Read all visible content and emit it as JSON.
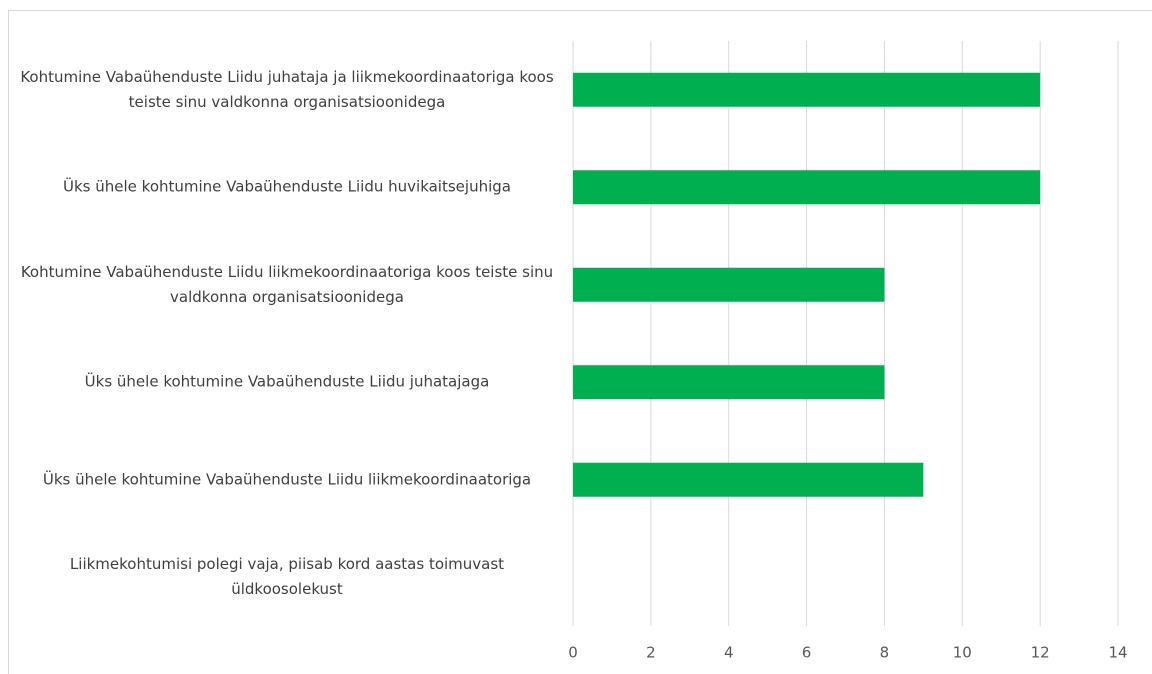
{
  "chart_data": {
    "type": "bar",
    "orientation": "horizontal",
    "categories": [
      "Kohtumine Vabaühenduste Liidu juhataja ja liikmekoordinaatoriga koos teiste sinu valdkonna organisatsioonidega",
      "Üks ühele kohtumine Vabaühenduste Liidu huvikaitsejuhiga",
      "Kohtumine Vabaühenduste Liidu liikmekoordinaatoriga koos teiste sinu valdkonna organisatsioonidega",
      "Üks ühele kohtumine Vabaühenduste Liidu juhatajaga",
      "Üks ühele kohtumine Vabaühenduste Liidu liikmekoordinaatoriga",
      "Liikmekohtumisi polegi vaja, piisab kord aastas toimuvast üldkoosolekust"
    ],
    "values": [
      12,
      12,
      8,
      8,
      9,
      0
    ],
    "color": "#00b050",
    "xlim": [
      0,
      14
    ],
    "xticks": [
      0,
      2,
      4,
      6,
      8,
      10,
      12,
      14
    ],
    "grid": true
  }
}
